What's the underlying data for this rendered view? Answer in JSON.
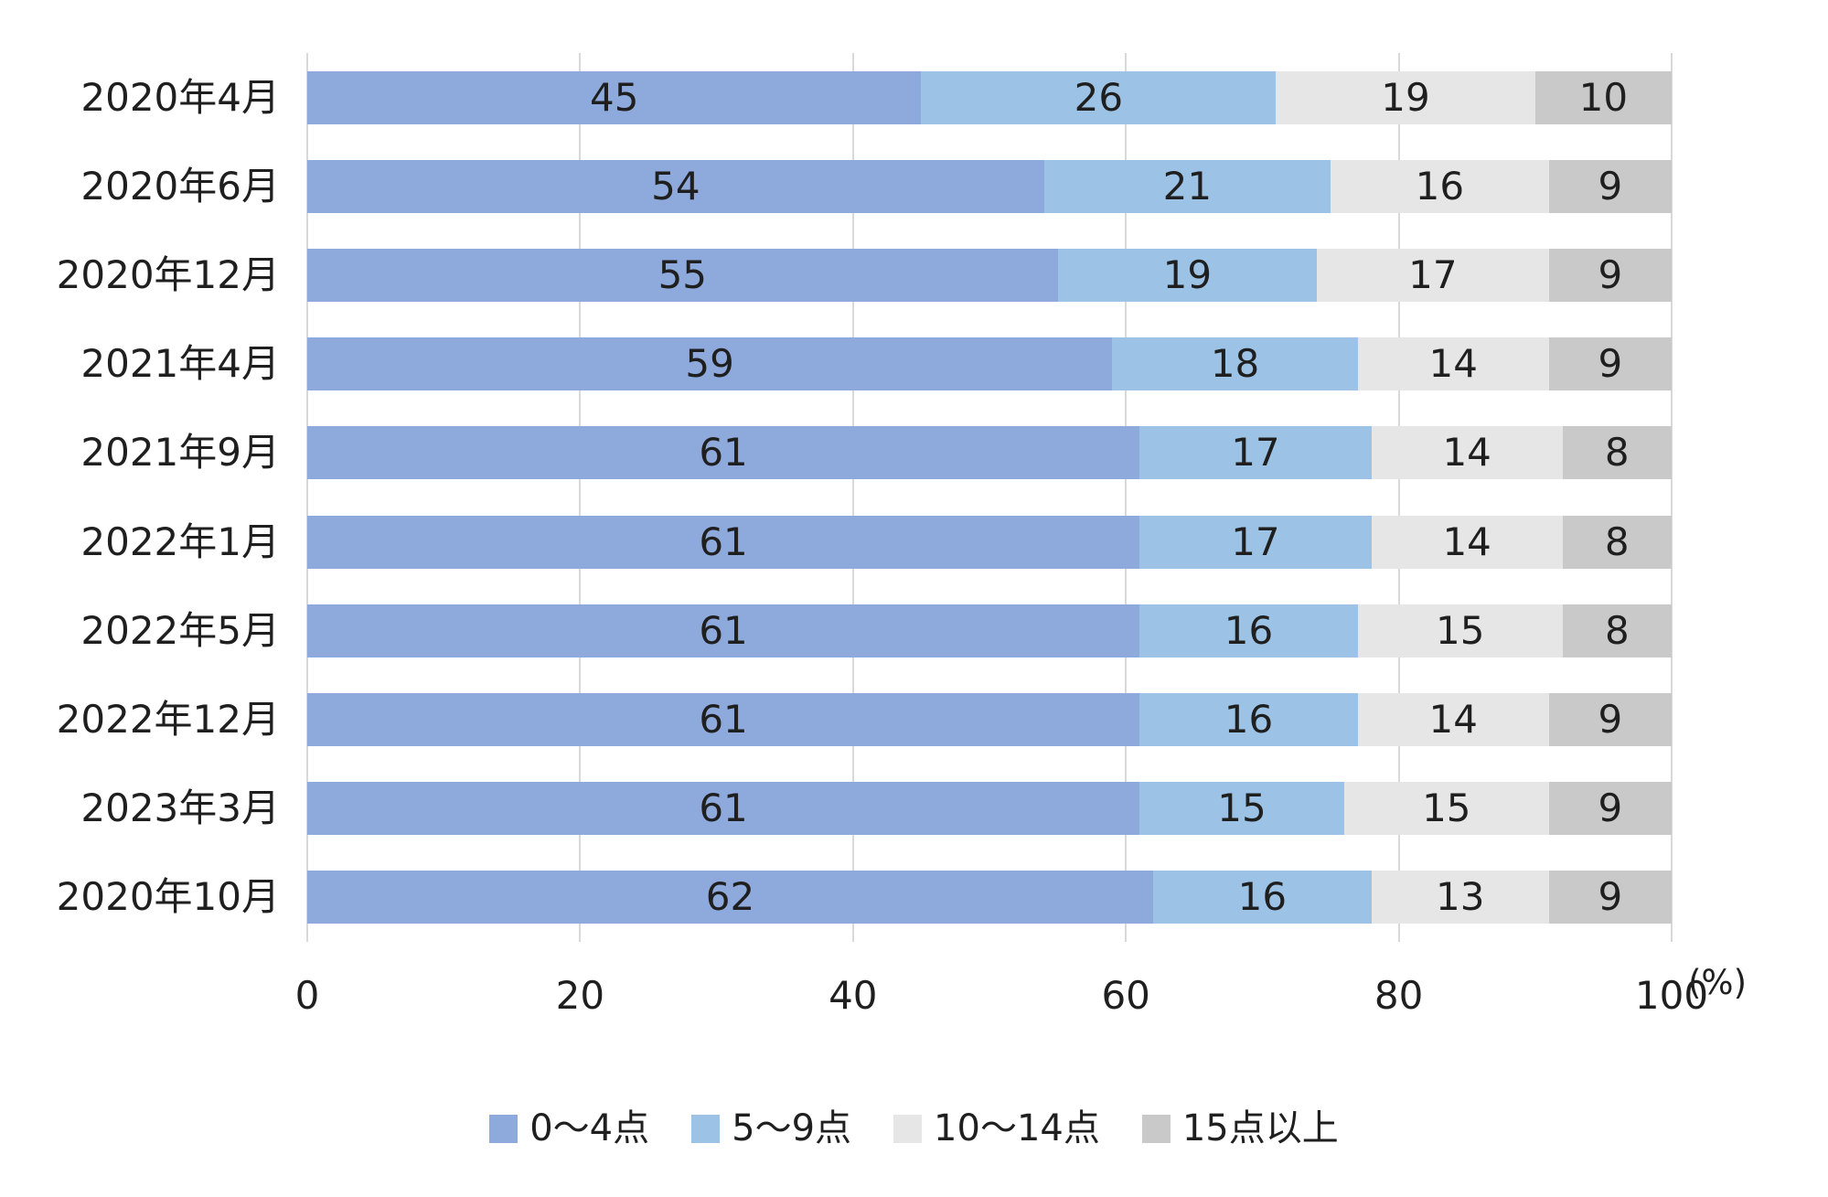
{
  "chart_data": {
    "type": "bar",
    "orientation": "horizontal",
    "stacked": true,
    "title": "",
    "xlabel": "",
    "ylabel": "",
    "unit_label": "(%)",
    "categories": [
      "2020年4月",
      "2020年6月",
      "2020年12月",
      "2021年4月",
      "2021年9月",
      "2022年1月",
      "2022年5月",
      "2022年12月",
      "2023年3月",
      "2020年10月"
    ],
    "series": [
      {
        "name": "0〜4点",
        "color": "#8EA9DB",
        "values": [
          45,
          54,
          55,
          59,
          61,
          61,
          61,
          61,
          61,
          62
        ]
      },
      {
        "name": "5〜9点",
        "color": "#9CC3E5",
        "values": [
          26,
          21,
          19,
          18,
          17,
          17,
          16,
          16,
          15,
          16
        ]
      },
      {
        "name": "10〜14点",
        "color": "#E7E6E6",
        "values": [
          19,
          16,
          17,
          14,
          14,
          14,
          15,
          14,
          15,
          13
        ]
      },
      {
        "name": "15点以上",
        "color": "#C9C9C9",
        "values": [
          10,
          9,
          9,
          9,
          8,
          8,
          8,
          9,
          9,
          9
        ]
      }
    ],
    "x_ticks": [
      0,
      20,
      40,
      60,
      80,
      100
    ],
    "xlim": [
      0,
      100
    ],
    "grid": true,
    "gridline_color": "#D9D9D9",
    "text_color": "#1F1F1F",
    "legend_position": "bottom"
  }
}
